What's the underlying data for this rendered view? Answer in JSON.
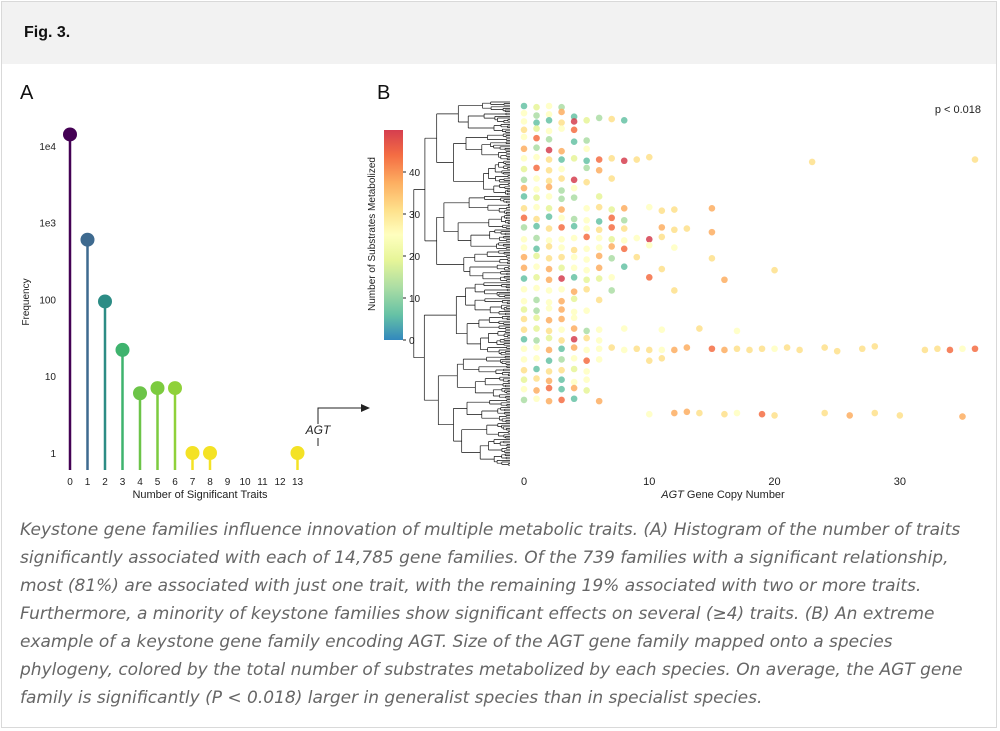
{
  "figure": {
    "label": "Fig. 3."
  },
  "caption": "Keystone gene families influence innovation of multiple metabolic traits. (A) Histogram of the number of traits significantly associated with each of 14,785 gene families. Of the 739 families with a significant relationship, most (81%) are associated with just one trait, with the remaining 19% associated with two or more traits. Furthermore, a minority of keystone families show significant effects on several (≥4) traits. (B) An extreme example of a keystone gene family encoding AGT. Size of the AGT gene family mapped onto a species phylogeny, colored by the total number of substrates metabolized by each species. On average, the AGT gene family is significantly (P < 0.018) larger in generalist species than in specialist species.",
  "chart_data": [
    {
      "panel": "A",
      "type": "lollipop",
      "title": "",
      "xlabel": "Number of Significant Traits",
      "ylabel": "Frequency",
      "yscale": "log",
      "ylim": [
        1,
        14000
      ],
      "xticks": [
        "0",
        "1",
        "2",
        "3",
        "4",
        "5",
        "6",
        "7",
        "8",
        "9",
        "10",
        "11",
        "12",
        "13"
      ],
      "yticks": [
        {
          "value": 1,
          "label": "1"
        },
        {
          "value": 10,
          "label": "10"
        },
        {
          "value": 100,
          "label": "100"
        },
        {
          "value": 1000,
          "label": "1e3"
        },
        {
          "value": 10000,
          "label": "1e4"
        }
      ],
      "points": [
        {
          "x": 0,
          "y": 14046,
          "color": "#440154"
        },
        {
          "x": 1,
          "y": 599,
          "color": "#3e6a8f"
        },
        {
          "x": 2,
          "y": 94,
          "color": "#2c8c85"
        },
        {
          "x": 3,
          "y": 22,
          "color": "#3fb36e"
        },
        {
          "x": 4,
          "y": 6,
          "color": "#6cc448"
        },
        {
          "x": 5,
          "y": 7,
          "color": "#7ccb3f"
        },
        {
          "x": 6,
          "y": 7,
          "color": "#8fd13a"
        },
        {
          "x": 7,
          "y": 1,
          "color": "#f4e225"
        },
        {
          "x": 8,
          "y": 1,
          "color": "#f4e225"
        },
        {
          "x": 13,
          "y": 1,
          "color": "#f4e225"
        }
      ],
      "annotation": {
        "text": "AGT",
        "x": 13
      }
    },
    {
      "panel": "B",
      "type": "scatter",
      "xlabel_italic": "AGT",
      "xlabel": "Gene Copy Number",
      "xlim": [
        0,
        36
      ],
      "xticks": [
        0,
        10,
        20,
        30
      ],
      "annotation": "p < 0.018",
      "colorbar": {
        "label": "Number of Substrates Metabolized",
        "range": [
          0,
          50
        ],
        "ticks": [
          0,
          10,
          20,
          30,
          40
        ],
        "colors": [
          "#3288bd",
          "#66c2a5",
          "#abdda4",
          "#e6f598",
          "#ffffbf",
          "#fee08b",
          "#fdae61",
          "#f46d43",
          "#d53e4f"
        ]
      },
      "points": [
        [
          0,
          44
        ],
        [
          1,
          45
        ],
        [
          2,
          44
        ],
        [
          3,
          45
        ],
        [
          0,
          50
        ],
        [
          1,
          52
        ],
        [
          2,
          51
        ],
        [
          3,
          49
        ],
        [
          4,
          53
        ],
        [
          0,
          57
        ],
        [
          1,
          58
        ],
        [
          2,
          56
        ],
        [
          3,
          58
        ],
        [
          4,
          57
        ],
        [
          5,
          56
        ],
        [
          6,
          54
        ],
        [
          7,
          55
        ],
        [
          8,
          56
        ],
        [
          0,
          64
        ],
        [
          1,
          63
        ],
        [
          2,
          65
        ],
        [
          3,
          63
        ],
        [
          4,
          64
        ],
        [
          0,
          70
        ],
        [
          1,
          71
        ],
        [
          2,
          72
        ],
        [
          4,
          74
        ],
        [
          5,
          73
        ],
        [
          0,
          80
        ],
        [
          1,
          79
        ],
        [
          2,
          81
        ],
        [
          3,
          82
        ],
        [
          5,
          80
        ],
        [
          0,
          88
        ],
        [
          1,
          87
        ],
        [
          2,
          89
        ],
        [
          3,
          89
        ],
        [
          4,
          88
        ],
        [
          5,
          90
        ],
        [
          6,
          89
        ],
        [
          7,
          88
        ],
        [
          8,
          90
        ],
        [
          9,
          89
        ],
        [
          10,
          87
        ],
        [
          23,
          91
        ],
        [
          36,
          89
        ],
        [
          0,
          97
        ],
        [
          1,
          96
        ],
        [
          2,
          98
        ],
        [
          3,
          97
        ],
        [
          5,
          96
        ],
        [
          6,
          98
        ],
        [
          0,
          106
        ],
        [
          1,
          105
        ],
        [
          2,
          107
        ],
        [
          3,
          105
        ],
        [
          4,
          106
        ],
        [
          5,
          108
        ],
        [
          7,
          105
        ],
        [
          0,
          113
        ],
        [
          1,
          114
        ],
        [
          2,
          112
        ],
        [
          3,
          115
        ],
        [
          4,
          113
        ],
        [
          0,
          120
        ],
        [
          1,
          121
        ],
        [
          2,
          120
        ],
        [
          3,
          122
        ],
        [
          4,
          121
        ],
        [
          6,
          120
        ],
        [
          0,
          130
        ],
        [
          1,
          129
        ],
        [
          2,
          130
        ],
        [
          3,
          131
        ],
        [
          5,
          130
        ],
        [
          6,
          129
        ],
        [
          7,
          131
        ],
        [
          8,
          130
        ],
        [
          10,
          129
        ],
        [
          11,
          132
        ],
        [
          12,
          131
        ],
        [
          15,
          130
        ],
        [
          0,
          138
        ],
        [
          1,
          139
        ],
        [
          2,
          137
        ],
        [
          3,
          138
        ],
        [
          4,
          139
        ],
        [
          5,
          140
        ],
        [
          6,
          141
        ],
        [
          7,
          138
        ],
        [
          8,
          140
        ],
        [
          0,
          146
        ],
        [
          1,
          145
        ],
        [
          2,
          147
        ],
        [
          3,
          146
        ],
        [
          4,
          145
        ],
        [
          5,
          147
        ],
        [
          6,
          148
        ],
        [
          7,
          146
        ],
        [
          8,
          147
        ],
        [
          11,
          146
        ],
        [
          12,
          148
        ],
        [
          13,
          147
        ],
        [
          15,
          150
        ],
        [
          0,
          156
        ],
        [
          1,
          155
        ],
        [
          2,
          157
        ],
        [
          3,
          156
        ],
        [
          4,
          155
        ],
        [
          5,
          154
        ],
        [
          6,
          155
        ],
        [
          7,
          156
        ],
        [
          8,
          157
        ],
        [
          9,
          155
        ],
        [
          10,
          156
        ],
        [
          11,
          154
        ],
        [
          0,
          163
        ],
        [
          1,
          164
        ],
        [
          2,
          162
        ],
        [
          3,
          163
        ],
        [
          4,
          165
        ],
        [
          5,
          164
        ],
        [
          6,
          163
        ],
        [
          7,
          162
        ],
        [
          8,
          164
        ],
        [
          10,
          161
        ],
        [
          12,
          163
        ],
        [
          0,
          171
        ],
        [
          1,
          170
        ],
        [
          2,
          172
        ],
        [
          3,
          171
        ],
        [
          4,
          171
        ],
        [
          5,
          173
        ],
        [
          6,
          170
        ],
        [
          7,
          172
        ],
        [
          9,
          171
        ],
        [
          15,
          172
        ],
        [
          0,
          180
        ],
        [
          1,
          179
        ],
        [
          2,
          181
        ],
        [
          3,
          180
        ],
        [
          4,
          180
        ],
        [
          5,
          182
        ],
        [
          6,
          180
        ],
        [
          8,
          179
        ],
        [
          11,
          181
        ],
        [
          20,
          182
        ],
        [
          0,
          189
        ],
        [
          1,
          188
        ],
        [
          2,
          190
        ],
        [
          3,
          189
        ],
        [
          4,
          188
        ],
        [
          5,
          190
        ],
        [
          6,
          189
        ],
        [
          7,
          188
        ],
        [
          10,
          188
        ],
        [
          16,
          190
        ],
        [
          0,
          198
        ],
        [
          1,
          197
        ],
        [
          2,
          199
        ],
        [
          3,
          198
        ],
        [
          4,
          200
        ],
        [
          5,
          198
        ],
        [
          7,
          199
        ],
        [
          12,
          199
        ],
        [
          0,
          208
        ],
        [
          1,
          207
        ],
        [
          2,
          209
        ],
        [
          3,
          208
        ],
        [
          4,
          206
        ],
        [
          6,
          207
        ],
        [
          0,
          215
        ],
        [
          1,
          216
        ],
        [
          2,
          214
        ],
        [
          3,
          215
        ],
        [
          4,
          217
        ],
        [
          5,
          216
        ],
        [
          0,
          223
        ],
        [
          1,
          222
        ],
        [
          2,
          224
        ],
        [
          3,
          223
        ],
        [
          4,
          222
        ],
        [
          0,
          232
        ],
        [
          1,
          231
        ],
        [
          2,
          233
        ],
        [
          3,
          232
        ],
        [
          4,
          231
        ],
        [
          5,
          233
        ],
        [
          6,
          232
        ],
        [
          8,
          231
        ],
        [
          11,
          232
        ],
        [
          14,
          231
        ],
        [
          17,
          233
        ],
        [
          0,
          240
        ],
        [
          1,
          241
        ],
        [
          2,
          239
        ],
        [
          3,
          241
        ],
        [
          4,
          240
        ],
        [
          5,
          239
        ],
        [
          6,
          241
        ],
        [
          0,
          248
        ],
        [
          1,
          247
        ],
        [
          2,
          249
        ],
        [
          3,
          248
        ],
        [
          4,
          247
        ],
        [
          5,
          249
        ],
        [
          6,
          248
        ],
        [
          7,
          247
        ],
        [
          8,
          249
        ],
        [
          9,
          248
        ],
        [
          10,
          249
        ],
        [
          11,
          249
        ],
        [
          12,
          249
        ],
        [
          13,
          247
        ],
        [
          15,
          248
        ],
        [
          16,
          249
        ],
        [
          17,
          248
        ],
        [
          18,
          249
        ],
        [
          19,
          248
        ],
        [
          20,
          248
        ],
        [
          21,
          247
        ],
        [
          22,
          249
        ],
        [
          24,
          247
        ],
        [
          25,
          250
        ],
        [
          27,
          248
        ],
        [
          28,
          246
        ],
        [
          32,
          249
        ],
        [
          33,
          248
        ],
        [
          34,
          249
        ],
        [
          35,
          248
        ],
        [
          36,
          248
        ],
        [
          0,
          257
        ],
        [
          1,
          256
        ],
        [
          2,
          258
        ],
        [
          3,
          257
        ],
        [
          4,
          256
        ],
        [
          5,
          258
        ],
        [
          6,
          257
        ],
        [
          10,
          258
        ],
        [
          11,
          256
        ],
        [
          0,
          266
        ],
        [
          1,
          265
        ],
        [
          2,
          267
        ],
        [
          3,
          266
        ],
        [
          4,
          265
        ],
        [
          5,
          267
        ],
        [
          0,
          274
        ],
        [
          1,
          273
        ],
        [
          2,
          275
        ],
        [
          3,
          274
        ],
        [
          4,
          276
        ],
        [
          5,
          274
        ],
        [
          0,
          282
        ],
        [
          1,
          283
        ],
        [
          2,
          281
        ],
        [
          3,
          282
        ],
        [
          4,
          281
        ],
        [
          5,
          283
        ],
        [
          0,
          291
        ],
        [
          1,
          290
        ],
        [
          2,
          292
        ],
        [
          3,
          291
        ],
        [
          4,
          290
        ],
        [
          6,
          292
        ],
        [
          10,
          303
        ],
        [
          12,
          302
        ],
        [
          13,
          301
        ],
        [
          14,
          302
        ],
        [
          16,
          303
        ],
        [
          17,
          302
        ],
        [
          19,
          303
        ],
        [
          20,
          304
        ],
        [
          24,
          302
        ],
        [
          26,
          304
        ],
        [
          28,
          302
        ],
        [
          30,
          304
        ],
        [
          35,
          305
        ]
      ]
    }
  ]
}
